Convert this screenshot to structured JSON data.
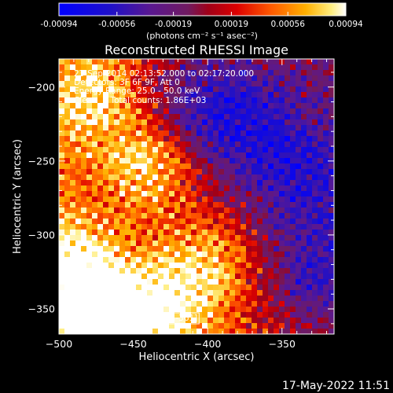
{
  "chart_data": {
    "type": "heatmap",
    "title": "Reconstructed RHESSI Image",
    "xlabel": "Heliocentric X (arcsec)",
    "ylabel": "Heliocentric Y (arcsec)",
    "x_ticks": [
      -500,
      -450,
      -400,
      -350
    ],
    "y_ticks": [
      -200,
      -250,
      -300,
      -350
    ],
    "x_tick_labels": [
      "−500",
      "−450",
      "−400",
      "−350"
    ],
    "y_tick_labels": [
      "−200",
      "−250",
      "−300",
      "−350"
    ],
    "xlim": [
      -500,
      -315
    ],
    "ylim": [
      -367,
      -181
    ],
    "colorbar": {
      "ticks": [
        -0.00094,
        -0.00056,
        -0.00019,
        0.00019,
        0.00056,
        0.00094
      ],
      "tick_labels": [
        "-0.00094",
        "-0.00056",
        "-0.00019",
        "0.00019",
        "0.00056",
        "0.00094"
      ],
      "unit_label": "(photons cm⁻² s⁻¹ asec⁻²)",
      "min": -0.00094,
      "max": 0.00094
    },
    "annotations": {
      "time_range": "23-Sep-2014 02:13:52.000 to 02:17:20.000",
      "detectors": "Detectors: 3F 6F 9F, Att 0",
      "energy_range": "Energy Range: 25.0 - 50.0 keV",
      "clean_total": "Clean     Total counts: 1.86E+03",
      "peak_label": "Position of Peak = ",
      "peak_value": "[-473,-361]"
    },
    "peak": {
      "x": -473,
      "y": -361
    },
    "intensity_pattern": {
      "description_of_values": "pixel intensities in colorbar units, bright band along left/bottom edges, negative region to the right",
      "hot_regions": [
        {
          "x": -440,
          "y": -250,
          "value": 0.0008
        },
        {
          "x": -475,
          "y": -205,
          "value": 0.0007
        },
        {
          "x": -473,
          "y": -355,
          "value": 0.00094
        },
        {
          "x": -430,
          "y": -345,
          "value": 0.0007
        },
        {
          "x": -395,
          "y": -320,
          "value": 0.0006
        },
        {
          "x": -490,
          "y": -320,
          "value": 0.00065
        }
      ],
      "cold_regions": [
        {
          "x": -380,
          "y": -220,
          "value": -0.0007
        },
        {
          "x": -340,
          "y": -260,
          "value": -0.0006
        },
        {
          "x": -420,
          "y": -215,
          "value": -0.0005
        },
        {
          "x": -325,
          "y": -330,
          "value": -0.0006
        }
      ]
    }
  },
  "footer": {
    "timestamp": "17-May-2022 11:51"
  }
}
